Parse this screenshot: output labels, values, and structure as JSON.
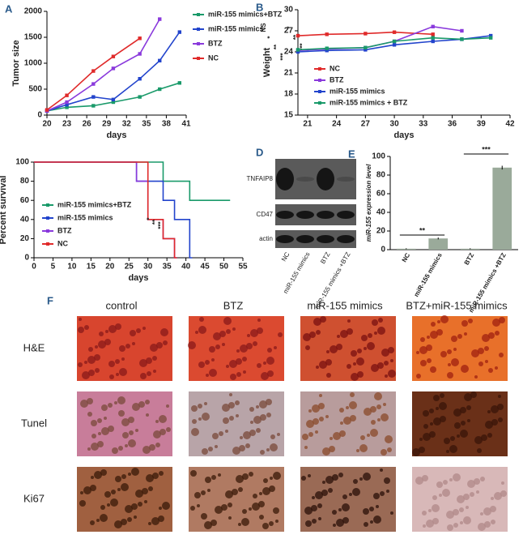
{
  "chart_data": [
    {
      "panel": "A",
      "type": "line",
      "xlabel": "days",
      "ylabel": "Tumor size",
      "xlim": [
        20,
        41
      ],
      "xticks": [
        20,
        23,
        26,
        29,
        32,
        35,
        38,
        41
      ],
      "ylim": [
        0,
        2000
      ],
      "yticks": [
        0,
        500,
        1000,
        1500,
        2000
      ],
      "series": [
        {
          "name": "miR-155 mimics+BTZ",
          "color": "#1a9a6a",
          "x": [
            20,
            23,
            27,
            30,
            34,
            37,
            40
          ],
          "values": [
            80,
            150,
            180,
            250,
            350,
            500,
            620
          ]
        },
        {
          "name": "miR-155 mimics",
          "color": "#2244cc",
          "x": [
            20,
            23,
            27,
            30,
            34,
            37,
            40
          ],
          "values": [
            80,
            200,
            350,
            300,
            700,
            1050,
            1600
          ]
        },
        {
          "name": "BTZ",
          "color": "#8a3adc",
          "x": [
            20,
            23,
            27,
            30,
            34,
            37
          ],
          "values": [
            80,
            250,
            600,
            900,
            1180,
            1850
          ]
        },
        {
          "name": "NC",
          "color": "#e02a2a",
          "x": [
            20,
            23,
            27,
            30,
            34
          ],
          "values": [
            100,
            380,
            850,
            1130,
            1480
          ]
        }
      ],
      "annotations": [
        "NS",
        "*",
        "**",
        "***",
        "*",
        "**",
        "***"
      ]
    },
    {
      "panel": "B",
      "type": "line",
      "xlabel": "days",
      "ylabel": "Weight",
      "xlim": [
        20,
        42
      ],
      "xticks": [
        21,
        24,
        27,
        30,
        33,
        36,
        39,
        42
      ],
      "ylim": [
        15,
        30
      ],
      "yticks": [
        15,
        18,
        21,
        24,
        27,
        30
      ],
      "series": [
        {
          "name": "NC",
          "color": "#e02a2a",
          "x": [
            20,
            23,
            27,
            30,
            34
          ],
          "values": [
            26.3,
            26.5,
            26.6,
            26.8,
            26.5
          ]
        },
        {
          "name": "BTZ",
          "color": "#8a3adc",
          "x": [
            20,
            23,
            27,
            30,
            34,
            37
          ],
          "values": [
            24.2,
            24.4,
            24.6,
            25.5,
            27.6,
            27
          ]
        },
        {
          "name": "miR-155 mimics",
          "color": "#2244cc",
          "x": [
            20,
            23,
            27,
            30,
            34,
            37,
            40
          ],
          "values": [
            24.0,
            24.2,
            24.3,
            25.0,
            25.5,
            25.8,
            26.3
          ]
        },
        {
          "name": "miR-155 mimics + BTZ",
          "color": "#1a9a6a",
          "x": [
            20,
            23,
            27,
            30,
            34,
            37,
            40
          ],
          "values": [
            24.3,
            24.5,
            24.6,
            25.5,
            26,
            25.8,
            26
          ]
        }
      ]
    },
    {
      "panel": "C",
      "type": "step",
      "xlabel": "days",
      "ylabel": "Percent survival",
      "xlim": [
        0,
        55
      ],
      "xticks": [
        0,
        5,
        10,
        15,
        20,
        25,
        30,
        35,
        40,
        45,
        50,
        55
      ],
      "ylim": [
        0,
        100
      ],
      "yticks": [
        0,
        20,
        40,
        60,
        80,
        100
      ],
      "series": [
        {
          "name": "miR-155 mimics+BTZ",
          "color": "#1a9a6a",
          "x": [
            0,
            34,
            41,
            51
          ],
          "values": [
            100,
            80,
            60,
            60
          ]
        },
        {
          "name": "miR-155 mimics",
          "color": "#2244cc",
          "x": [
            0,
            27,
            34,
            37,
            41
          ],
          "values": [
            100,
            80,
            60,
            40,
            0
          ]
        },
        {
          "name": "BTZ",
          "color": "#8a3adc",
          "x": [
            0,
            27,
            30,
            34,
            37
          ],
          "values": [
            100,
            80,
            40,
            20,
            0
          ]
        },
        {
          "name": "NC",
          "color": "#e02a2a",
          "x": [
            0,
            30,
            34,
            37
          ],
          "values": [
            100,
            40,
            20,
            0
          ]
        }
      ],
      "annotations": [
        "*",
        "**",
        "***"
      ]
    },
    {
      "panel": "E",
      "type": "bar",
      "ylabel": "miR-155 expression level",
      "color": "#9aaa9a",
      "categories": [
        "NC",
        "miR-155 mimics",
        "BTZ",
        "miR-155 mimics +BTZ"
      ],
      "values": [
        1,
        12,
        1,
        88
      ],
      "errors": [
        0.5,
        1,
        0.5,
        2
      ],
      "ylim": [
        0,
        100
      ],
      "yticks": [
        0,
        20,
        40,
        60,
        80,
        100
      ],
      "annotations": [
        "**",
        "***"
      ]
    }
  ],
  "blot": {
    "panel": "D",
    "rows": [
      "TNFAIP8",
      "CD47",
      "actin"
    ],
    "columns": [
      "NC",
      "miR-155 mimics",
      "BTZ",
      "miR-155 mimics +BTZ"
    ]
  },
  "histology": {
    "panel": "F",
    "columns": [
      "control",
      "BTZ",
      "miR-155 mimics",
      "BTZ+miR-155 mimics"
    ],
    "rows": [
      "H&E",
      "Tunel",
      "Ki67"
    ]
  }
}
